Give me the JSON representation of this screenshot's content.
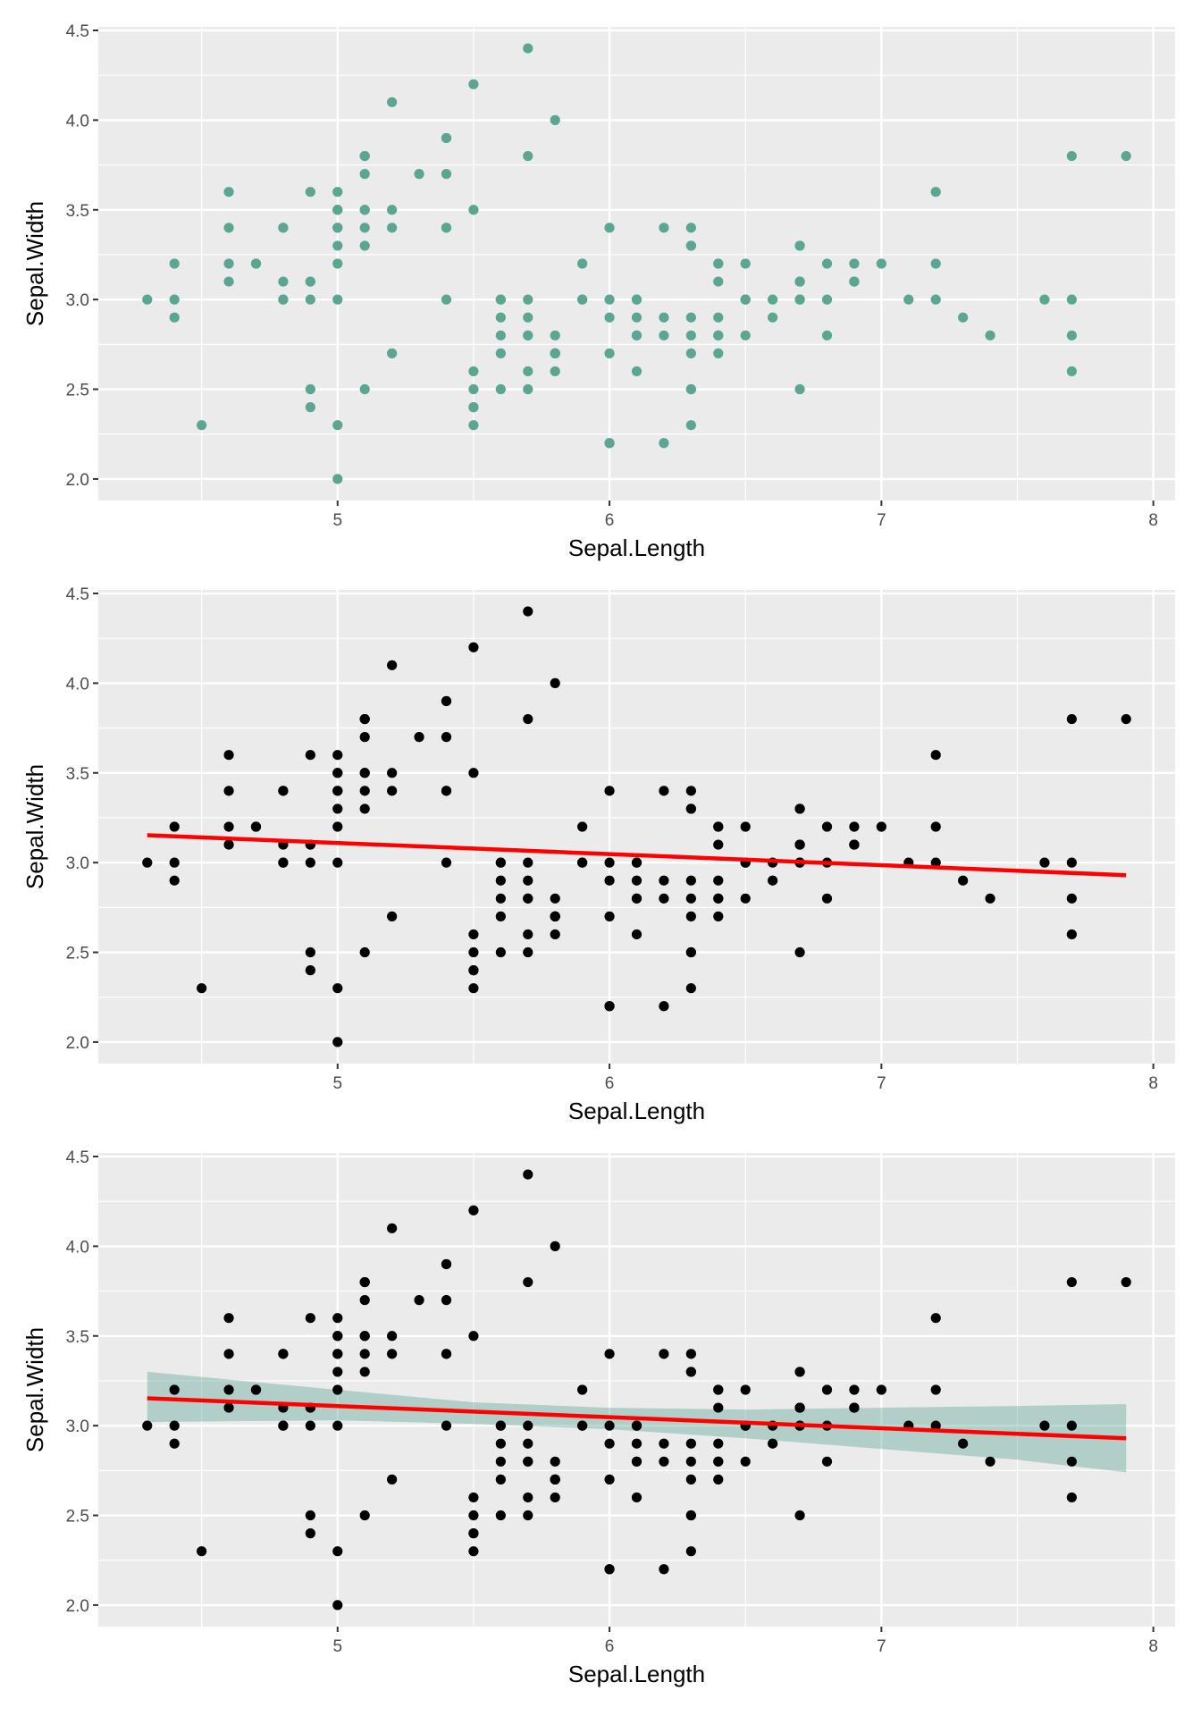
{
  "chart_data": [
    {
      "type": "scatter",
      "xlabel": "Sepal.Length",
      "ylabel": "Sepal.Width",
      "xlim": [
        4.12,
        8.08
      ],
      "ylim": [
        1.88,
        4.52
      ],
      "xticks": [
        "5",
        "6",
        "7",
        "8"
      ],
      "yticks": [
        "2.0",
        "2.5",
        "3.0",
        "3.5",
        "4.0",
        "4.5"
      ],
      "point_color": "#5aa693",
      "smooth": null
    },
    {
      "type": "scatter",
      "xlabel": "Sepal.Length",
      "ylabel": "Sepal.Width",
      "xlim": [
        4.12,
        8.08
      ],
      "ylim": [
        1.88,
        4.52
      ],
      "xticks": [
        "5",
        "6",
        "7",
        "8"
      ],
      "yticks": [
        "2.0",
        "2.5",
        "3.0",
        "3.5",
        "4.0",
        "4.5"
      ],
      "point_color": "#000000",
      "smooth": {
        "method": "lm",
        "color": "#ff0000",
        "intercept": 3.4189,
        "slope": -0.0619,
        "se": false
      }
    },
    {
      "type": "scatter",
      "xlabel": "Sepal.Length",
      "ylabel": "Sepal.Width",
      "xlim": [
        4.12,
        8.08
      ],
      "ylim": [
        1.88,
        4.52
      ],
      "xticks": [
        "5",
        "6",
        "7",
        "8"
      ],
      "yticks": [
        "2.0",
        "2.5",
        "3.0",
        "3.5",
        "4.0",
        "4.5"
      ],
      "point_color": "#000000",
      "smooth": {
        "method": "lm",
        "color": "#ff0000",
        "intercept": 3.4189,
        "slope": -0.0619,
        "se": true,
        "ribbon_color": "#5aa693",
        "ribbon": [
          [
            4.3,
            3.02,
            3.3
          ],
          [
            5.0,
            3.03,
            3.2
          ],
          [
            5.5,
            3.01,
            3.13
          ],
          [
            6.0,
            2.98,
            3.1
          ],
          [
            6.5,
            2.93,
            3.09
          ],
          [
            7.0,
            2.87,
            3.1
          ],
          [
            7.5,
            2.81,
            3.11
          ],
          [
            7.9,
            2.74,
            3.12
          ]
        ]
      }
    }
  ],
  "points": {
    "x": [
      5.1,
      4.9,
      4.7,
      4.6,
      5.0,
      5.4,
      4.6,
      5.0,
      4.4,
      4.9,
      5.4,
      4.8,
      4.8,
      4.3,
      5.8,
      5.7,
      5.4,
      5.1,
      5.7,
      5.1,
      5.4,
      5.1,
      4.6,
      5.1,
      4.8,
      5.0,
      5.0,
      5.2,
      5.2,
      4.7,
      4.8,
      5.4,
      5.2,
      5.5,
      4.9,
      5.0,
      5.5,
      4.9,
      4.4,
      5.1,
      5.0,
      4.5,
      4.4,
      5.0,
      5.1,
      4.8,
      5.1,
      4.6,
      5.3,
      5.0,
      7.0,
      6.4,
      6.9,
      5.5,
      6.5,
      5.7,
      6.3,
      4.9,
      6.6,
      5.2,
      5.0,
      5.9,
      6.0,
      6.1,
      5.6,
      6.7,
      5.6,
      5.8,
      6.2,
      5.6,
      5.9,
      6.1,
      6.3,
      6.1,
      6.4,
      6.6,
      6.8,
      6.7,
      6.0,
      5.7,
      5.5,
      5.5,
      5.8,
      6.0,
      5.4,
      6.0,
      6.7,
      6.3,
      5.6,
      5.5,
      5.5,
      6.1,
      5.8,
      5.0,
      5.6,
      5.7,
      5.7,
      6.2,
      5.1,
      5.7,
      6.3,
      5.8,
      7.1,
      6.3,
      6.5,
      7.6,
      4.9,
      7.3,
      6.7,
      7.2,
      6.5,
      6.4,
      6.8,
      5.7,
      5.8,
      6.4,
      6.5,
      7.7,
      7.7,
      6.0,
      6.9,
      5.6,
      7.7,
      6.3,
      6.7,
      7.2,
      6.2,
      6.1,
      6.4,
      7.2,
      7.4,
      7.9,
      6.4,
      6.3,
      6.1,
      7.7,
      6.3,
      6.4,
      6.0,
      6.9,
      6.7,
      6.9,
      5.8,
      6.8,
      6.7,
      6.7,
      6.3,
      6.5,
      6.2,
      5.9
    ],
    "y": [
      3.5,
      3.0,
      3.2,
      3.1,
      3.6,
      3.9,
      3.4,
      3.4,
      2.9,
      3.1,
      3.7,
      3.4,
      3.0,
      3.0,
      4.0,
      4.4,
      3.9,
      3.5,
      3.8,
      3.8,
      3.4,
      3.7,
      3.6,
      3.3,
      3.4,
      3.0,
      3.4,
      3.5,
      3.4,
      3.2,
      3.1,
      3.4,
      4.1,
      4.2,
      3.1,
      3.2,
      3.5,
      3.6,
      3.0,
      3.4,
      3.5,
      2.3,
      3.2,
      3.5,
      3.8,
      3.0,
      3.8,
      3.2,
      3.7,
      3.3,
      3.2,
      3.2,
      3.1,
      2.3,
      2.8,
      2.8,
      3.3,
      2.4,
      2.9,
      2.7,
      2.0,
      3.0,
      2.2,
      2.9,
      2.9,
      3.1,
      3.0,
      2.7,
      2.2,
      2.5,
      3.2,
      2.8,
      2.5,
      2.8,
      2.9,
      3.0,
      2.8,
      3.0,
      2.9,
      2.6,
      2.4,
      2.4,
      2.7,
      2.7,
      3.0,
      3.4,
      3.1,
      2.3,
      3.0,
      2.5,
      2.6,
      3.0,
      2.6,
      2.3,
      2.7,
      3.0,
      2.9,
      2.9,
      2.5,
      2.8,
      3.3,
      2.7,
      3.0,
      2.9,
      3.0,
      3.0,
      2.5,
      2.9,
      2.5,
      3.6,
      3.2,
      2.7,
      3.0,
      2.5,
      2.8,
      3.2,
      3.0,
      3.8,
      2.6,
      2.2,
      3.2,
      2.8,
      2.8,
      2.7,
      3.3,
      3.2,
      2.8,
      3.0,
      2.8,
      3.0,
      2.8,
      3.8,
      2.8,
      2.8,
      2.6,
      3.0,
      3.4,
      3.1,
      3.0,
      3.1,
      3.1,
      3.1,
      2.7,
      3.2,
      3.3,
      3.0,
      2.5,
      3.0,
      3.4,
      3.0
    ]
  }
}
